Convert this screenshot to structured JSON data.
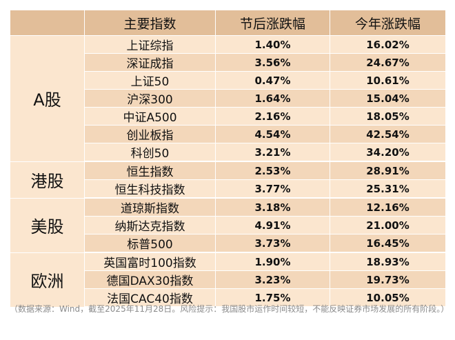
{
  "table": {
    "headers": [
      "",
      "主要指数",
      "节后涨跌幅",
      "今年涨跌幅"
    ],
    "groups": [
      {
        "region": "A股",
        "rows": [
          {
            "index": "上证综指",
            "post_holiday": "1.40%",
            "ytd": "16.02%"
          },
          {
            "index": "深证成指",
            "post_holiday": "3.56%",
            "ytd": "24.67%"
          },
          {
            "index": "上证50",
            "post_holiday": "0.47%",
            "ytd": "10.61%"
          },
          {
            "index": "沪深300",
            "post_holiday": "1.64%",
            "ytd": "15.04%"
          },
          {
            "index": "中证A500",
            "post_holiday": "2.16%",
            "ytd": "18.05%"
          },
          {
            "index": "创业板指",
            "post_holiday": "4.54%",
            "ytd": "42.54%"
          },
          {
            "index": "科创50",
            "post_holiday": "3.21%",
            "ytd": "34.20%"
          }
        ]
      },
      {
        "region": "港股",
        "rows": [
          {
            "index": "恒生指数",
            "post_holiday": "2.53%",
            "ytd": "28.91%"
          },
          {
            "index": "恒生科技指数",
            "post_holiday": "3.77%",
            "ytd": "25.31%"
          }
        ]
      },
      {
        "region": "美股",
        "rows": [
          {
            "index": "道琼斯指数",
            "post_holiday": "3.18%",
            "ytd": "12.16%"
          },
          {
            "index": "纳斯达克指数",
            "post_holiday": "4.91%",
            "ytd": "21.00%"
          },
          {
            "index": "标普500",
            "post_holiday": "3.73%",
            "ytd": "16.45%"
          }
        ]
      },
      {
        "region": "欧洲",
        "rows": [
          {
            "index": "英国富时100指数",
            "post_holiday": "1.90%",
            "ytd": "18.93%"
          },
          {
            "index": "德国DAX30指数",
            "post_holiday": "3.23%",
            "ytd": "19.73%"
          },
          {
            "index": "法国CAC40指数",
            "post_holiday": "1.75%",
            "ytd": "10.05%"
          }
        ]
      }
    ]
  },
  "footnote": "（数据来源：Wind，截至2025年11月28日。风险提示：我国股市运作时间较短，不能反映证券市场发展的所有阶段。）"
}
